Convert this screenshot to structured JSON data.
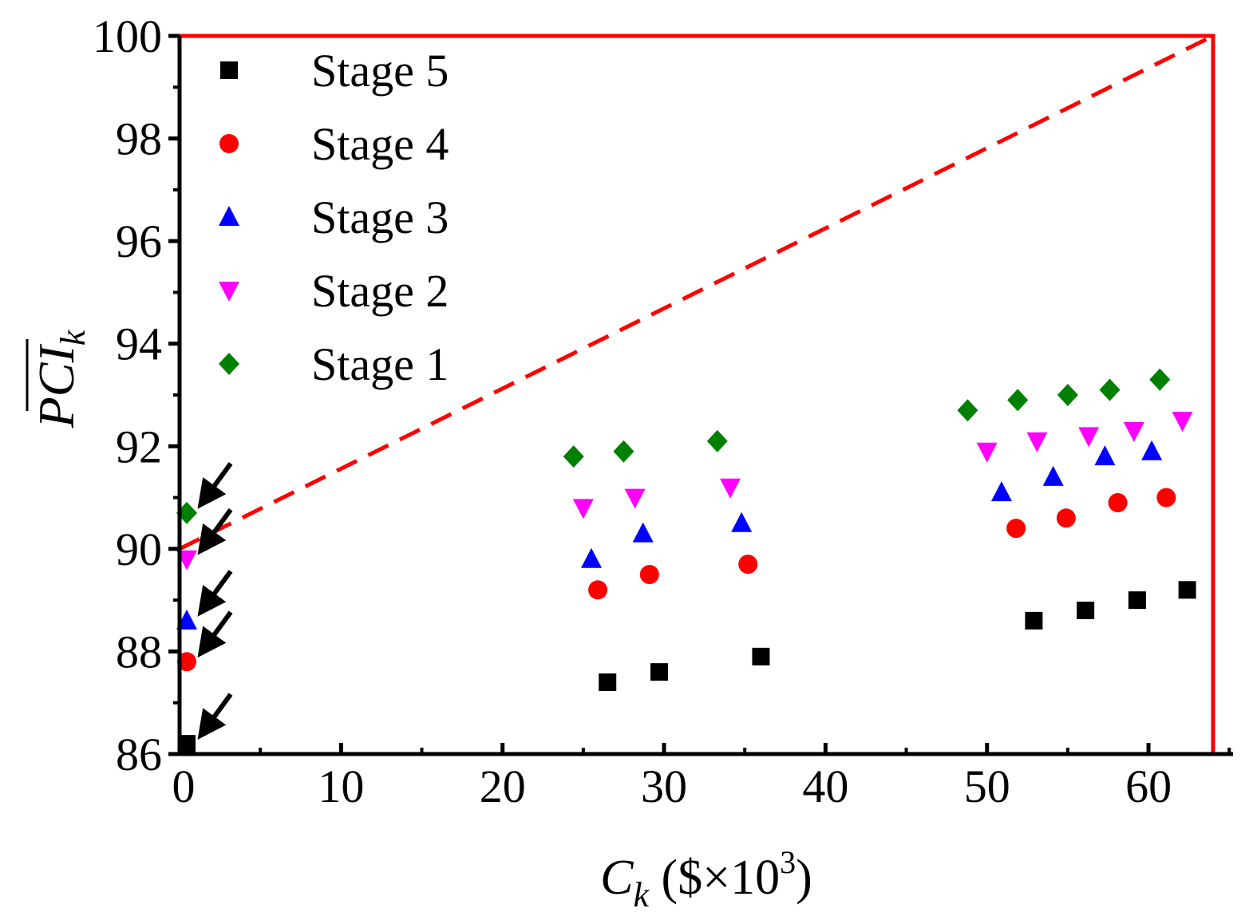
{
  "chart_data": {
    "type": "scatter",
    "xlabel": {
      "main": "C",
      "sub": "k",
      "rest": " ($×10",
      "sup": "3",
      "close": ")"
    },
    "ylabel": {
      "main": "PCI",
      "sub": "k",
      "overline": true
    },
    "xlim": [
      0,
      64
    ],
    "ylim": [
      86,
      100
    ],
    "xticks": [
      0,
      10,
      20,
      30,
      40,
      50,
      60
    ],
    "xtick_labels": [
      "0",
      "10",
      "20",
      "30",
      "40",
      "50",
      "60"
    ],
    "yticks": [
      86,
      88,
      90,
      92,
      94,
      96,
      98,
      100
    ],
    "ytick_labels": [
      "86",
      "88",
      "90",
      "92",
      "94",
      "96",
      "98",
      "100"
    ],
    "legend_position": "top-left",
    "series": [
      {
        "name": "Stage 5",
        "marker": "square",
        "color": "#000000",
        "x": [
          0.2,
          26.5,
          29.7,
          36.0,
          52.9,
          56.1,
          59.3,
          62.4
        ],
        "y": [
          86.2,
          87.4,
          87.6,
          87.9,
          88.6,
          88.8,
          89.0,
          89.2
        ]
      },
      {
        "name": "Stage 4",
        "marker": "circle",
        "color": "#ff0000",
        "x": [
          0.2,
          25.9,
          29.1,
          35.2,
          51.8,
          54.9,
          58.1,
          61.1
        ],
        "y": [
          87.8,
          89.2,
          89.5,
          89.7,
          90.4,
          90.6,
          90.9,
          91.0
        ]
      },
      {
        "name": "Stage 3",
        "marker": "triangle-up",
        "color": "#0000ff",
        "x": [
          0.2,
          25.5,
          28.7,
          34.8,
          50.9,
          54.1,
          57.3,
          60.2
        ],
        "y": [
          88.6,
          89.8,
          90.3,
          90.5,
          91.1,
          91.4,
          91.8,
          91.9
        ]
      },
      {
        "name": "Stage 2",
        "marker": "triangle-down",
        "color": "#ff00ff",
        "x": [
          0.2,
          25.0,
          28.2,
          34.1,
          50.0,
          53.1,
          56.3,
          59.1,
          62.1
        ],
        "y": [
          89.8,
          90.8,
          91.0,
          91.2,
          91.9,
          92.1,
          92.2,
          92.3,
          92.5
        ]
      },
      {
        "name": "Stage 1",
        "marker": "diamond",
        "color": "#008000",
        "x": [
          0.2,
          24.4,
          27.5,
          33.3,
          48.8,
          51.9,
          55.0,
          57.6,
          60.7
        ],
        "y": [
          90.7,
          91.8,
          91.9,
          92.1,
          92.7,
          92.9,
          93.0,
          93.1,
          93.3
        ]
      }
    ],
    "reference_line": {
      "style": "dashed",
      "color": "#ff0000",
      "x": [
        0,
        64
      ],
      "y": [
        90,
        100
      ]
    },
    "reference_box": {
      "color": "#ff0000",
      "x": 64,
      "y": 100
    },
    "arrow_annotations": [
      {
        "target_series": "Stage 1",
        "x": 0.2,
        "y": 90.7
      },
      {
        "target_series": "Stage 2",
        "x": 0.2,
        "y": 89.8
      },
      {
        "target_series": "Stage 3",
        "x": 0.2,
        "y": 88.6
      },
      {
        "target_series": "Stage 4",
        "x": 0.2,
        "y": 87.8
      },
      {
        "target_series": "Stage 5",
        "x": 0.2,
        "y": 86.2
      }
    ]
  }
}
